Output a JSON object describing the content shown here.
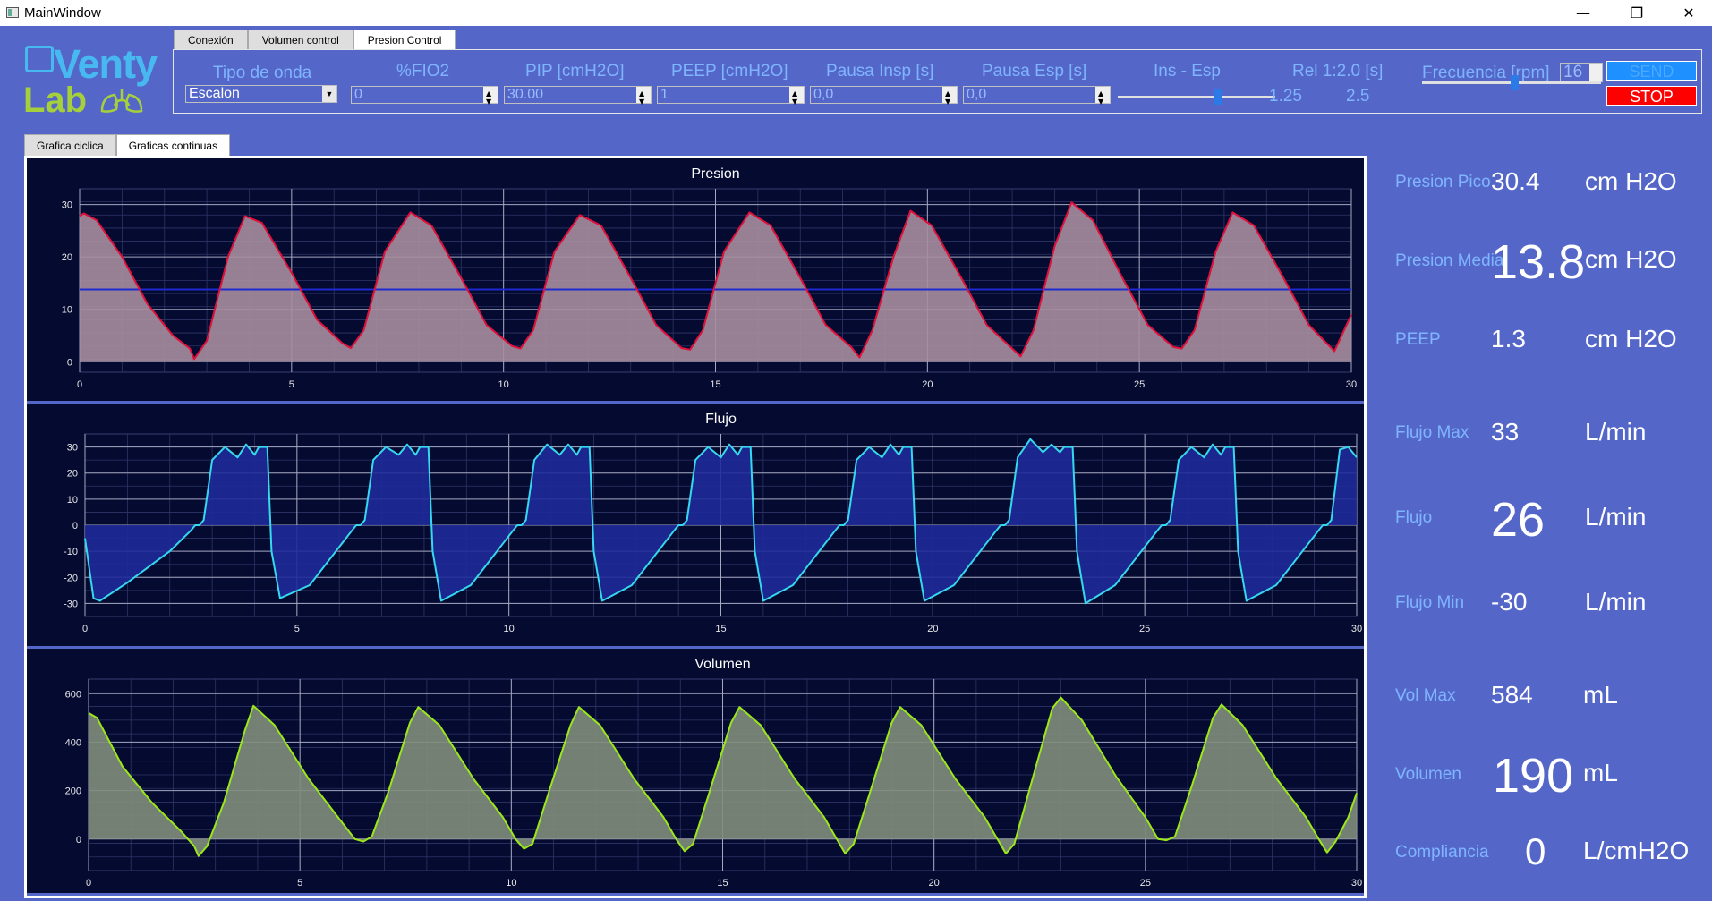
{
  "window": {
    "title": "MainWindow",
    "minimize": "—",
    "maximize": "❐",
    "close": "✕"
  },
  "logo": {
    "line1": "Venty",
    "line2": "Lab"
  },
  "top_tabs": [
    "Conexión",
    "Volumen control",
    "Presion Control"
  ],
  "controls": {
    "tipo_label": "Tipo de onda",
    "tipo_value": "Escalon",
    "fio2_label": "%FIO2",
    "fio2_value": "0",
    "pip_label": "PIP [cmH2O]",
    "pip_value": "30.00",
    "peep_label": "PEEP [cmH2O]",
    "peep_value": "1",
    "pausa_insp_label": "Pausa Insp [s]",
    "pausa_insp_value": "0,0",
    "pausa_esp_label": "Pausa Esp [s]",
    "pausa_esp_value": "0,0",
    "ins_esp_label": "Ins - Esp",
    "rel_label": "Rel 1:2.0 [s]",
    "ins_value": "1.25",
    "esp_value": "2.5",
    "freq_label": "Frecuencia [rpm]",
    "freq_value": "16",
    "send_label": "SEND",
    "stop_label": "STOP",
    "ins_esp_slider": 0.64,
    "freq_slider": 0.52
  },
  "lower_tabs": [
    "Grafica ciclica",
    "Graficas continuas"
  ],
  "readouts": {
    "presion_pico": {
      "label": "Presion Pico",
      "value": "30.4",
      "unit": "cm H2O"
    },
    "presion_media": {
      "label": "Presion Media",
      "value": "13.8",
      "unit": "cm H2O"
    },
    "peep": {
      "label": "PEEP",
      "value": "1.3",
      "unit": "cm H2O"
    },
    "flujo_max": {
      "label": "Flujo Max",
      "value": "33",
      "unit": "L/min"
    },
    "flujo": {
      "label": "Flujo",
      "value": "26",
      "unit": "L/min"
    },
    "flujo_min": {
      "label": "Flujo Min",
      "value": "-30",
      "unit": "L/min"
    },
    "vol_max": {
      "label": "Vol Max",
      "value": "584",
      "unit": "mL"
    },
    "volumen": {
      "label": "Volumen",
      "value": "190",
      "unit": "mL"
    },
    "compliancia": {
      "label": "Compliancia",
      "value": "0",
      "unit": "L/cmH2O"
    }
  },
  "colors": {
    "pressure": "#e0103a",
    "pressure_fill": "#a78d9e",
    "pressure_mean_line": "#1d2bd0",
    "flow": "#36d8f0",
    "flow_fill": "#1e2a9a",
    "volume": "#9be81a",
    "volume_fill": "#7f8d7b"
  },
  "chart_data": [
    {
      "type": "area",
      "title": "Presion",
      "xlabel": "",
      "ylabel": "",
      "xlim": [
        0,
        30
      ],
      "ylim": [
        -2,
        33
      ],
      "xticks": [
        0,
        5,
        10,
        15,
        20,
        25,
        30
      ],
      "yticks": [
        0,
        10,
        20,
        30
      ],
      "mean_line": 13.8,
      "grid": true,
      "x": [
        0,
        0.1,
        0.4,
        1.0,
        1.6,
        2.2,
        2.6,
        2.7,
        3.0,
        3.5,
        3.9,
        4.3,
        5.0,
        5.6,
        6.2,
        6.4,
        6.7,
        7.2,
        7.8,
        8.3,
        9.0,
        9.6,
        10.2,
        10.4,
        10.7,
        11.2,
        11.8,
        12.3,
        13.0,
        13.6,
        14.2,
        14.4,
        14.7,
        15.2,
        15.8,
        16.3,
        17.0,
        17.6,
        18.2,
        18.4,
        18.7,
        19.2,
        19.6,
        20.1,
        20.8,
        21.4,
        22.0,
        22.2,
        22.5,
        23.0,
        23.4,
        23.9,
        24.6,
        25.2,
        25.8,
        26.0,
        26.3,
        26.8,
        27.2,
        27.7,
        28.4,
        29.0,
        29.6,
        30.0
      ],
      "y": [
        27.8,
        28.3,
        27.0,
        20.0,
        11.0,
        5.0,
        2.5,
        0.5,
        4.0,
        20.0,
        27.8,
        26.5,
        17.0,
        8.0,
        3.5,
        2.6,
        6.0,
        21.0,
        28.5,
        26.0,
        16.0,
        7.0,
        3.0,
        2.5,
        6.0,
        21.0,
        28.0,
        26.0,
        16.0,
        7.0,
        2.6,
        2.3,
        6.0,
        21.0,
        28.5,
        26.0,
        16.0,
        7.0,
        2.8,
        0.8,
        6.0,
        20.0,
        28.8,
        26.0,
        16.0,
        7.0,
        2.5,
        1.0,
        6.0,
        22.0,
        30.4,
        27.0,
        16.0,
        7.0,
        2.8,
        2.5,
        6.0,
        21.0,
        28.5,
        26.0,
        16.0,
        7.0,
        2.0,
        9.0
      ]
    },
    {
      "type": "area",
      "title": "Flujo",
      "xlabel": "",
      "ylabel": "",
      "xlim": [
        0,
        30
      ],
      "ylim": [
        -35,
        35
      ],
      "xticks": [
        0,
        5,
        10,
        15,
        20,
        25,
        30
      ],
      "yticks": [
        -30,
        -20,
        -10,
        0,
        10,
        20,
        30
      ],
      "grid": true,
      "x": [
        0,
        0.2,
        0.35,
        1.0,
        2.0,
        2.5,
        2.6,
        2.7,
        2.8,
        3.0,
        3.3,
        3.6,
        3.8,
        4.0,
        4.1,
        4.3,
        4.4,
        4.6,
        5.3,
        6.3,
        6.4,
        6.5,
        6.6,
        6.8,
        7.1,
        7.4,
        7.6,
        7.8,
        7.9,
        8.1,
        8.2,
        8.4,
        9.1,
        10.1,
        10.2,
        10.3,
        10.4,
        10.6,
        10.9,
        11.2,
        11.4,
        11.6,
        11.7,
        11.9,
        12.0,
        12.2,
        12.9,
        13.9,
        14.0,
        14.1,
        14.2,
        14.4,
        14.7,
        15.0,
        15.2,
        15.4,
        15.5,
        15.7,
        15.8,
        16.0,
        16.7,
        17.7,
        17.8,
        17.9,
        18.0,
        18.2,
        18.5,
        18.8,
        19.0,
        19.2,
        19.3,
        19.5,
        19.6,
        19.8,
        20.5,
        21.5,
        21.6,
        21.7,
        21.8,
        22.0,
        22.3,
        22.6,
        22.8,
        23.0,
        23.1,
        23.3,
        23.4,
        23.6,
        24.3,
        25.3,
        25.4,
        25.5,
        25.6,
        25.8,
        26.1,
        26.4,
        26.6,
        26.8,
        26.9,
        27.1,
        27.2,
        27.4,
        28.1,
        29.1,
        29.2,
        29.3,
        29.4,
        29.6,
        29.8,
        30.0
      ],
      "y": [
        -5,
        -28,
        -29,
        -22,
        -10,
        -2,
        0,
        0,
        2,
        25,
        30,
        26,
        31,
        27,
        30,
        30,
        -10,
        -28,
        -23,
        -2,
        0,
        0,
        2,
        25,
        30,
        27,
        31,
        27,
        30,
        30,
        -10,
        -29,
        -23,
        -2,
        0,
        0,
        2,
        25,
        31,
        27,
        31,
        27,
        30,
        30,
        -10,
        -29,
        -23,
        -2,
        0,
        0,
        2,
        25,
        30,
        26,
        31,
        27,
        30,
        30,
        -10,
        -29,
        -23,
        -2,
        0,
        0,
        2,
        25,
        30,
        26,
        31,
        27,
        30,
        30,
        -10,
        -29,
        -23,
        -2,
        0,
        0,
        2,
        26,
        33,
        28,
        31,
        28,
        30,
        30,
        -10,
        -30,
        -23,
        -2,
        0,
        0,
        2,
        25,
        30,
        26,
        31,
        27,
        30,
        30,
        -10,
        -29,
        -23,
        -2,
        0,
        0,
        2,
        29,
        30,
        26
      ]
    },
    {
      "type": "area",
      "title": "Volumen",
      "xlabel": "",
      "ylabel": "",
      "xlim": [
        0,
        30
      ],
      "ylim": [
        -130,
        660
      ],
      "xticks": [
        0,
        5,
        10,
        15,
        20,
        25,
        30
      ],
      "yticks": [
        0,
        200,
        400,
        600
      ],
      "grid": true,
      "x": [
        0,
        0.2,
        0.8,
        1.5,
        2.2,
        2.5,
        2.6,
        2.8,
        3.2,
        3.7,
        3.9,
        4.4,
        5.2,
        5.9,
        6.3,
        6.5,
        6.7,
        7.1,
        7.6,
        7.8,
        8.3,
        9.1,
        9.8,
        10.1,
        10.3,
        10.5,
        10.9,
        11.4,
        11.6,
        12.1,
        12.9,
        13.6,
        13.9,
        14.1,
        14.3,
        14.7,
        15.2,
        15.4,
        15.9,
        16.7,
        17.4,
        17.7,
        17.9,
        18.1,
        18.5,
        19.0,
        19.2,
        19.7,
        20.5,
        21.2,
        21.5,
        21.7,
        21.9,
        22.3,
        22.8,
        23.0,
        23.5,
        24.3,
        25.0,
        25.3,
        25.5,
        25.7,
        26.1,
        26.6,
        26.8,
        27.3,
        28.1,
        28.8,
        29.1,
        29.3,
        29.5,
        29.8,
        30.0
      ],
      "y": [
        520,
        500,
        300,
        150,
        30,
        -30,
        -70,
        -30,
        150,
        450,
        550,
        470,
        250,
        90,
        0,
        -10,
        10,
        200,
        480,
        545,
        470,
        250,
        90,
        0,
        -40,
        -20,
        200,
        470,
        545,
        470,
        250,
        90,
        0,
        -50,
        -20,
        200,
        480,
        545,
        470,
        250,
        90,
        0,
        -60,
        -20,
        200,
        480,
        545,
        470,
        250,
        90,
        0,
        -60,
        -20,
        230,
        540,
        584,
        490,
        260,
        90,
        0,
        -5,
        10,
        220,
        500,
        555,
        470,
        250,
        90,
        0,
        -55,
        -10,
        90,
        190
      ]
    }
  ]
}
